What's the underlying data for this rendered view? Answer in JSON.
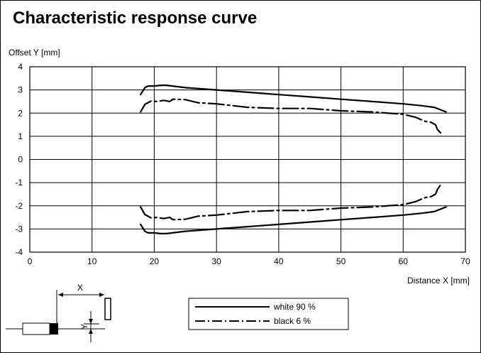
{
  "page": {
    "title": "Characteristic response curve"
  },
  "sensor_sketch": {
    "x_label": "X",
    "y_label": "Y"
  },
  "chart_data": {
    "type": "line",
    "xlabel": "Distance X [mm]",
    "ylabel": "Offset Y [mm]",
    "xlim": [
      0,
      70
    ],
    "ylim": [
      -4,
      4
    ],
    "xticks": [
      0,
      10,
      20,
      30,
      40,
      50,
      60,
      70
    ],
    "yticks": [
      4,
      3,
      2,
      1,
      0,
      -1,
      -2,
      -3,
      -4
    ],
    "grid": true,
    "legend_position": "bottom-center",
    "series": [
      {
        "name": "white 90 %",
        "style": "solid",
        "color": "#000000",
        "segments": [
          [
            [
              17.8,
              2.8
            ],
            [
              18.5,
              3.1
            ],
            [
              19.0,
              3.17
            ],
            [
              20.0,
              3.17
            ],
            [
              21.0,
              3.2
            ],
            [
              22.0,
              3.2
            ],
            [
              25.0,
              3.1
            ],
            [
              30.0,
              3.0
            ],
            [
              35.0,
              2.9
            ],
            [
              40.0,
              2.8
            ],
            [
              45.0,
              2.7
            ],
            [
              50.0,
              2.6
            ],
            [
              55.0,
              2.5
            ],
            [
              60.0,
              2.4
            ],
            [
              63.0,
              2.32
            ],
            [
              65.0,
              2.25
            ],
            [
              66.9,
              2.05
            ]
          ],
          [
            [
              17.8,
              -2.8
            ],
            [
              18.5,
              -3.1
            ],
            [
              19.0,
              -3.17
            ],
            [
              20.0,
              -3.17
            ],
            [
              21.0,
              -3.2
            ],
            [
              22.0,
              -3.2
            ],
            [
              25.0,
              -3.1
            ],
            [
              30.0,
              -3.0
            ],
            [
              35.0,
              -2.9
            ],
            [
              40.0,
              -2.8
            ],
            [
              45.0,
              -2.7
            ],
            [
              50.0,
              -2.6
            ],
            [
              55.0,
              -2.5
            ],
            [
              60.0,
              -2.4
            ],
            [
              63.0,
              -2.32
            ],
            [
              65.0,
              -2.25
            ],
            [
              66.9,
              -2.05
            ]
          ]
        ]
      },
      {
        "name": "black 6 %",
        "style": "dash-dot",
        "color": "#000000",
        "segments": [
          [
            [
              17.8,
              2.05
            ],
            [
              18.5,
              2.38
            ],
            [
              19.5,
              2.52
            ],
            [
              20.5,
              2.5
            ],
            [
              21.5,
              2.55
            ],
            [
              22.5,
              2.5
            ],
            [
              23.0,
              2.6
            ],
            [
              25.0,
              2.58
            ],
            [
              27.0,
              2.45
            ],
            [
              30.0,
              2.4
            ],
            [
              35.0,
              2.25
            ],
            [
              40.0,
              2.2
            ],
            [
              45.0,
              2.2
            ],
            [
              50.0,
              2.1
            ],
            [
              55.0,
              2.05
            ],
            [
              60.0,
              1.95
            ],
            [
              62.0,
              1.82
            ],
            [
              63.5,
              1.65
            ],
            [
              64.5,
              1.6
            ],
            [
              65.2,
              1.5
            ],
            [
              65.5,
              1.3
            ],
            [
              66.0,
              1.15
            ]
          ],
          [
            [
              17.8,
              -2.05
            ],
            [
              18.5,
              -2.38
            ],
            [
              19.5,
              -2.52
            ],
            [
              20.5,
              -2.5
            ],
            [
              21.5,
              -2.55
            ],
            [
              22.5,
              -2.5
            ],
            [
              23.0,
              -2.6
            ],
            [
              25.0,
              -2.58
            ],
            [
              27.0,
              -2.45
            ],
            [
              30.0,
              -2.4
            ],
            [
              35.0,
              -2.25
            ],
            [
              40.0,
              -2.2
            ],
            [
              45.0,
              -2.2
            ],
            [
              50.0,
              -2.1
            ],
            [
              55.0,
              -2.05
            ],
            [
              60.0,
              -1.95
            ],
            [
              62.0,
              -1.82
            ],
            [
              63.5,
              -1.65
            ],
            [
              64.5,
              -1.6
            ],
            [
              65.2,
              -1.5
            ],
            [
              65.5,
              -1.3
            ],
            [
              66.0,
              -1.1
            ]
          ]
        ]
      }
    ]
  }
}
